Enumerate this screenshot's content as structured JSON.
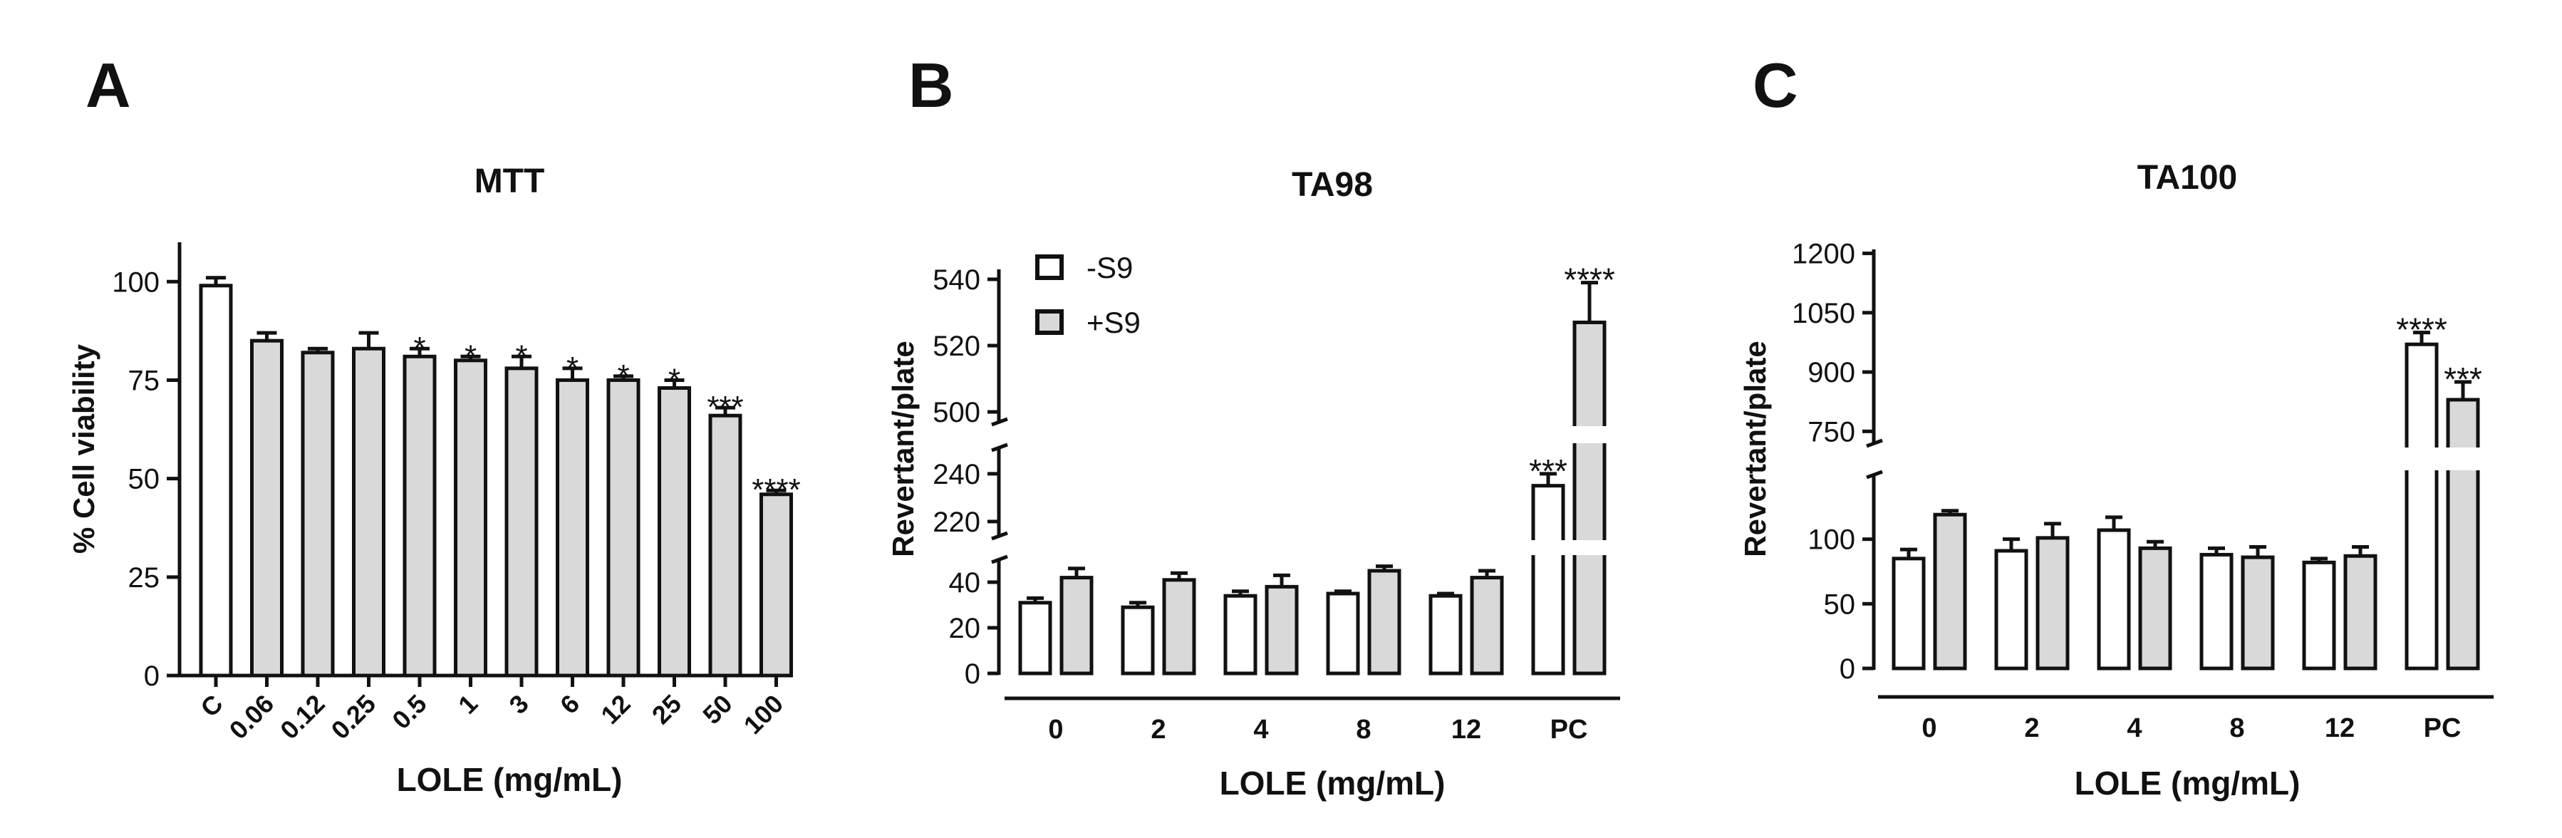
{
  "chart_data": [
    {
      "panel": "A",
      "type": "bar",
      "title": "MTT",
      "xlabel": "LOLE (mg/mL)",
      "ylabel": "% Cell viability",
      "categories": [
        "C",
        "0.06",
        "0.12",
        "0.25",
        "0.5",
        "1",
        "3",
        "6",
        "12",
        "25",
        "50",
        "100"
      ],
      "values": [
        99,
        85,
        82,
        83,
        81,
        80,
        78,
        75,
        75,
        73,
        66,
        46
      ],
      "errors": [
        2,
        2,
        1,
        4,
        2,
        1,
        3,
        3,
        1,
        2,
        2,
        1
      ],
      "annotations": [
        "",
        "",
        "",
        "",
        "*",
        "*",
        "*",
        "*",
        "*",
        "*",
        "***",
        "****"
      ],
      "bar_colors": [
        "#ffffff",
        "#d9d9d9",
        "#d9d9d9",
        "#d9d9d9",
        "#d9d9d9",
        "#d9d9d9",
        "#d9d9d9",
        "#d9d9d9",
        "#d9d9d9",
        "#d9d9d9",
        "#d9d9d9",
        "#d9d9d9"
      ],
      "yticks": [
        "0",
        "25",
        "50",
        "75",
        "100"
      ],
      "ylim": [
        0,
        110
      ]
    },
    {
      "panel": "B",
      "type": "bar",
      "title": "TA98",
      "xlabel": "LOLE (mg/mL)",
      "ylabel": "Revertant/plate",
      "categories": [
        "0",
        "2",
        "4",
        "8",
        "12",
        "PC"
      ],
      "series": [
        {
          "name": "-S9",
          "color": "#ffffff",
          "values": [
            31,
            29,
            34,
            35,
            34,
            235
          ],
          "errors": [
            2,
            2,
            2,
            1,
            1,
            5
          ],
          "annotations": [
            "",
            "",
            "",
            "",
            "",
            "***"
          ]
        },
        {
          "name": "+S9",
          "color": "#d9d9d9",
          "values": [
            42,
            41,
            38,
            45,
            42,
            527
          ],
          "errors": [
            4,
            3,
            5,
            2,
            3,
            12
          ],
          "annotations": [
            "",
            "",
            "",
            "",
            "",
            "****"
          ]
        }
      ],
      "y_axis_broken": true,
      "y_segments": [
        [
          0,
          50
        ],
        [
          214,
          251
        ],
        [
          497,
          543
        ]
      ],
      "yticks": [
        "0",
        "20",
        "40",
        "220",
        "240",
        "500",
        "520",
        "540"
      ],
      "legend": "top-left"
    },
    {
      "panel": "C",
      "type": "bar",
      "title": "TA100",
      "xlabel": "LOLE (mg/mL)",
      "ylabel": "Revertant/plate",
      "categories": [
        "0",
        "2",
        "4",
        "8",
        "12",
        "PC"
      ],
      "series": [
        {
          "name": "-S9",
          "color": "#ffffff",
          "values": [
            85,
            91,
            107,
            88,
            82,
            970
          ],
          "errors": [
            7,
            9,
            10,
            5,
            3,
            30
          ],
          "annotations": [
            "",
            "",
            "",
            "",
            "",
            "****"
          ]
        },
        {
          "name": "+S9",
          "color": "#d9d9d9",
          "values": [
            119,
            101,
            93,
            86,
            87,
            830
          ],
          "errors": [
            3,
            11,
            5,
            8,
            7,
            45
          ],
          "annotations": [
            "",
            "",
            "",
            "",
            "",
            "***"
          ]
        }
      ],
      "y_axis_broken": true,
      "y_segments": [
        [
          0,
          150
        ],
        [
          720,
          1210
        ]
      ],
      "yticks": [
        "0",
        "50",
        "100",
        "750",
        "900",
        "1050",
        "1200"
      ]
    }
  ],
  "panel_labels": [
    "A",
    "B",
    "C"
  ]
}
